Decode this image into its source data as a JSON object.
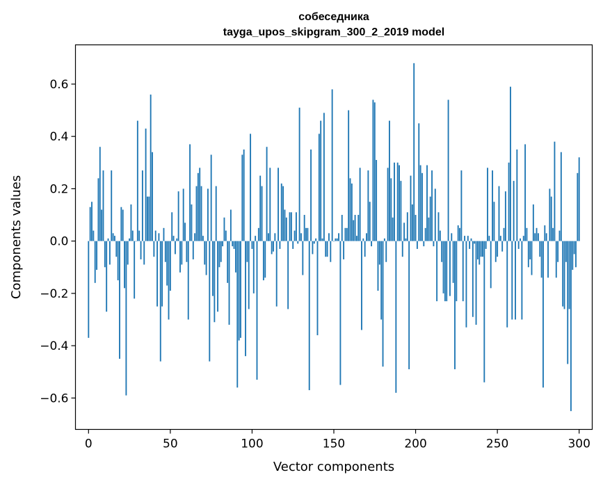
{
  "chart_data": {
    "type": "bar",
    "title": "собеседника",
    "subtitle": "tayga_upos_skipgram_300_2_2019 model",
    "xlabel": "Vector components",
    "ylabel": "Components values",
    "xlim": [
      -8,
      308
    ],
    "ylim": [
      -0.72,
      0.75
    ],
    "xticks": [
      0,
      50,
      100,
      150,
      200,
      250,
      300
    ],
    "xtick_labels": [
      "0",
      "50",
      "100",
      "150",
      "200",
      "250",
      "300"
    ],
    "yticks": [
      -0.6,
      -0.4,
      -0.2,
      0.0,
      0.2,
      0.4,
      0.6
    ],
    "ytick_labels": [
      "−0.6",
      "−0.4",
      "−0.2",
      "0.0",
      "0.2",
      "0.4",
      "0.6"
    ],
    "grid": false,
    "bar_color": "#1f77b4",
    "values": [
      -0.37,
      0.13,
      0.15,
      0.04,
      -0.16,
      -0.11,
      0.24,
      0.36,
      0.12,
      0.27,
      -0.1,
      -0.27,
      0.01,
      -0.09,
      0.27,
      0.03,
      0.02,
      -0.06,
      -0.15,
      -0.45,
      0.13,
      0.12,
      -0.18,
      -0.59,
      -0.09,
      0.01,
      0.14,
      0.04,
      -0.22,
      0.0,
      0.46,
      0.04,
      -0.07,
      0.27,
      -0.09,
      0.43,
      0.17,
      0.17,
      0.56,
      0.34,
      -0.06,
      0.04,
      -0.25,
      0.03,
      -0.46,
      -0.25,
      0.05,
      -0.08,
      -0.17,
      -0.3,
      -0.19,
      0.11,
      0.02,
      -0.05,
      0.01,
      0.19,
      -0.12,
      -0.09,
      0.2,
      0.07,
      -0.08,
      -0.3,
      0.37,
      0.14,
      -0.07,
      0.03,
      0.21,
      0.26,
      0.28,
      0.21,
      0.02,
      -0.09,
      -0.13,
      0.2,
      -0.46,
      0.33,
      -0.21,
      -0.31,
      0.21,
      -0.27,
      -0.1,
      -0.08,
      -0.02,
      0.09,
      0.04,
      -0.16,
      -0.32,
      0.12,
      -0.02,
      -0.03,
      -0.12,
      -0.56,
      -0.38,
      -0.37,
      0.33,
      0.35,
      -0.44,
      -0.08,
      -0.26,
      0.41,
      -0.03,
      -0.2,
      0.02,
      -0.53,
      0.05,
      0.25,
      0.21,
      -0.15,
      -0.14,
      0.36,
      0.03,
      0.28,
      -0.05,
      -0.04,
      0.03,
      -0.25,
      0.28,
      -0.03,
      0.22,
      0.21,
      0.12,
      0.09,
      -0.26,
      0.11,
      0.11,
      -0.03,
      0.04,
      0.11,
      -0.01,
      0.51,
      0.03,
      -0.13,
      0.1,
      0.05,
      0.05,
      -0.57,
      0.35,
      -0.05,
      -0.01,
      0.01,
      -0.36,
      0.41,
      0.46,
      0.01,
      0.49,
      -0.06,
      -0.06,
      0.03,
      -0.08,
      0.58,
      0.0,
      0.01,
      0.01,
      0.03,
      -0.55,
      0.1,
      -0.07,
      0.05,
      0.05,
      0.5,
      0.24,
      0.22,
      0.08,
      0.1,
      0.02,
      0.1,
      0.28,
      -0.34,
      0.01,
      -0.06,
      0.03,
      0.27,
      0.15,
      -0.02,
      0.54,
      0.53,
      0.31,
      -0.19,
      -0.09,
      -0.3,
      -0.48,
      0.01,
      -0.08,
      0.28,
      0.46,
      0.24,
      0.09,
      0.3,
      -0.58,
      0.3,
      0.29,
      0.23,
      -0.06,
      0.07,
      0.01,
      0.11,
      -0.49,
      0.25,
      0.14,
      0.68,
      0.1,
      -0.03,
      0.45,
      0.29,
      0.26,
      -0.02,
      0.05,
      0.29,
      0.09,
      0.17,
      0.27,
      -0.02,
      0.2,
      -0.23,
      0.11,
      0.04,
      -0.08,
      -0.2,
      -0.23,
      -0.23,
      0.54,
      -0.21,
      0.03,
      -0.16,
      -0.49,
      -0.23,
      0.06,
      0.05,
      0.27,
      -0.23,
      0.02,
      -0.33,
      0.02,
      -0.03,
      0.01,
      -0.29,
      -0.01,
      -0.32,
      -0.07,
      -0.09,
      -0.06,
      -0.06,
      -0.54,
      -0.03,
      0.28,
      0.02,
      -0.18,
      0.27,
      0.15,
      -0.08,
      -0.06,
      0.21,
      0.02,
      -0.04,
      0.05,
      0.19,
      -0.33,
      0.3,
      0.59,
      -0.3,
      0.23,
      -0.3,
      0.35,
      -0.03,
      0.01,
      -0.3,
      0.02,
      0.37,
      0.05,
      -0.1,
      -0.07,
      -0.13,
      0.14,
      0.03,
      0.05,
      0.03,
      -0.06,
      -0.14,
      -0.56,
      0.06,
      0.03,
      -0.14,
      0.2,
      0.17,
      0.05,
      0.38,
      -0.14,
      -0.08,
      0.04,
      0.34,
      -0.25,
      -0.26,
      -0.08,
      -0.47,
      -0.26,
      -0.65,
      -0.11,
      -0.05,
      -0.1,
      0.26,
      0.32
    ]
  }
}
